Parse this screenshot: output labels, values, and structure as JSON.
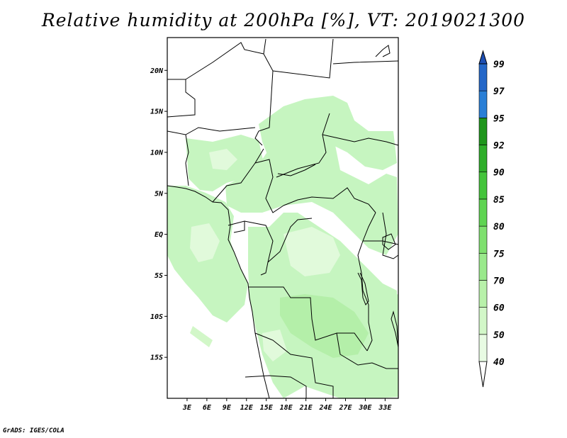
{
  "title": "Relative humidity at 200hPa [%], VT: 2019021300",
  "credit": "GrADS: IGES/COLA",
  "map": {
    "lon_range": [
      0,
      35
    ],
    "lat_range": [
      -20,
      24
    ],
    "lat_ticks": [
      {
        "value": 20,
        "label": "20N"
      },
      {
        "value": 15,
        "label": "15N"
      },
      {
        "value": 10,
        "label": "10N"
      },
      {
        "value": 5,
        "label": "5N"
      },
      {
        "value": 0,
        "label": "EQ"
      },
      {
        "value": -5,
        "label": "5S"
      },
      {
        "value": -10,
        "label": "10S"
      },
      {
        "value": -15,
        "label": "15S"
      }
    ],
    "lon_ticks": [
      {
        "value": 3,
        "label": "3E"
      },
      {
        "value": 6,
        "label": "6E"
      },
      {
        "value": 9,
        "label": "9E"
      },
      {
        "value": 12,
        "label": "12E"
      },
      {
        "value": 15,
        "label": "15E"
      },
      {
        "value": 18,
        "label": "18E"
      },
      {
        "value": 21,
        "label": "21E"
      },
      {
        "value": 24,
        "label": "24E"
      },
      {
        "value": 27,
        "label": "27E"
      },
      {
        "value": 30,
        "label": "30E"
      },
      {
        "value": 33,
        "label": "33E"
      }
    ]
  },
  "colorbar": {
    "levels": [
      "40",
      "50",
      "60",
      "70",
      "75",
      "80",
      "85",
      "90",
      "92",
      "95",
      "97",
      "99"
    ],
    "colors": [
      "#e8fbe3",
      "#d2f7c8",
      "#b8f1aa",
      "#9ae98c",
      "#7fe06f",
      "#5fd452",
      "#44c43b",
      "#2fae2a",
      "#1f961c",
      "#2a7fd6",
      "#2467c8",
      "#1d4fb3"
    ]
  },
  "shading_colors": {
    "light": "#c6f5c0",
    "pale": "#e1fadb",
    "mid": "#b4efa9"
  }
}
